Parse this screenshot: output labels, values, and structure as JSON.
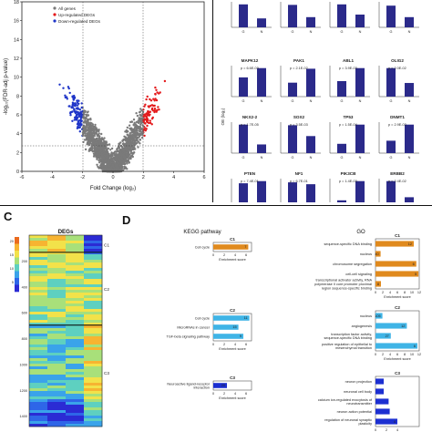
{
  "panel_letters": {
    "c": "C",
    "d": "D"
  },
  "volcano": {
    "legend": [
      "All genes",
      "Up-regulated DEGs",
      "Down-regulated DEGs"
    ],
    "colors": {
      "all": "#7a7a7a",
      "up": "#e41a1c",
      "down": "#1f35c8"
    },
    "xlabel": "Fold Change (log₂)",
    "ylabel": "-log₁₀(FDR-adj p-value)",
    "xticks": [
      "-6",
      "-4",
      "-2",
      "0",
      "2",
      "4",
      "6"
    ],
    "yticks": [
      "0",
      "2",
      "4",
      "6",
      "8",
      "10",
      "12",
      "14",
      "16",
      "18"
    ]
  },
  "bar_grid": {
    "ylabel": "OE (log₂)",
    "bar_color": "#2b2a8a",
    "xlabels": [
      "G",
      "N"
    ],
    "top_row_labels": [
      "G",
      "N"
    ],
    "panels": [
      {
        "gene": "MAPK12",
        "p": "p = 6.6E-03",
        "values": [
          0.62,
          0.92
        ]
      },
      {
        "gene": "PAK1",
        "p": "p = 2.1E-02",
        "values": [
          0.45,
          0.9
        ]
      },
      {
        "gene": "ABL1",
        "p": "p = 3.9E-03",
        "values": [
          0.5,
          0.92
        ]
      },
      {
        "gene": "OLIG2",
        "p": "p = 2.0E-02",
        "values": [
          0.92,
          0.44
        ]
      },
      {
        "gene": "NKX2-2",
        "p": "p = 1.7E-05",
        "values": [
          0.92,
          0.28
        ]
      },
      {
        "gene": "SOX2",
        "p": "p = 3.5E-03",
        "values": [
          0.9,
          0.55
        ]
      },
      {
        "gene": "TP53",
        "p": "p = 1.5E-04",
        "values": [
          0.3,
          0.92
        ]
      },
      {
        "gene": "DNMT1",
        "p": "p = 2.9E-03",
        "values": [
          0.4,
          0.92
        ]
      },
      {
        "gene": "PTEN",
        "p": "p = 7.4E-01",
        "values": [
          0.85,
          0.92
        ]
      },
      {
        "gene": "NF1",
        "p": "p = 6.7E-01",
        "values": [
          0.88,
          0.82
        ]
      },
      {
        "gene": "PIK3CB",
        "p": "p = 1.4E-03",
        "values": [
          0.3,
          0.92
        ]
      },
      {
        "gene": "ERBB2",
        "p": "p = 2.4E-02",
        "values": [
          0.92,
          0.4
        ]
      }
    ],
    "top_values": [
      [
        0.9,
        0.35
      ],
      [
        0.88,
        0.4
      ],
      [
        0.9,
        0.5
      ],
      [
        0.85,
        0.4
      ]
    ]
  },
  "heatmap": {
    "title": "DEGs",
    "clusters": [
      "C1",
      "C2",
      "C3"
    ],
    "yticks": [
      "200",
      "400",
      "600",
      "800",
      "1000",
      "1200",
      "1400"
    ],
    "colorbar_ticks": [
      "5",
      "10",
      "15",
      "20"
    ]
  },
  "kegg": {
    "title": "KEGG pathway",
    "xlabel": "Enrichment score",
    "clusters": [
      {
        "name": "C1",
        "color": "#e08a1e",
        "terms": [
          {
            "label": "Cell cycle",
            "score": 6.4,
            "count": "7"
          }
        ],
        "ticks": [
          "0",
          "2",
          "4",
          "6"
        ]
      },
      {
        "name": "C2",
        "color": "#3fb4e6",
        "terms": [
          {
            "label": "Cell cycle",
            "score": 6.6,
            "count": "11"
          },
          {
            "label": "MicroRNAs in cancer",
            "score": 4.6,
            "count": "15"
          },
          {
            "label": "TGF-beta signaling pathway",
            "score": 5.5,
            "count": "9"
          }
        ],
        "ticks": [
          "0",
          "2",
          "4",
          "6"
        ]
      },
      {
        "name": "C3",
        "color": "#1c2fd1",
        "terms": [
          {
            "label": "Neuroactive ligand-receptor interaction",
            "score": 2.5,
            "count": "20"
          }
        ],
        "ticks": [
          "0",
          "2",
          "4",
          "6"
        ]
      }
    ]
  },
  "go": {
    "title": "GO",
    "xlabel": "Enrichment score",
    "clusters": [
      {
        "name": "C1",
        "color": "#e08a1e",
        "ticks": [
          "0",
          "2",
          "4",
          "6",
          "8",
          "10",
          "12"
        ],
        "max": 12,
        "terms": [
          {
            "label": "sequence-specific DNA binding",
            "score": 10.5,
            "count": "12"
          },
          {
            "label": "nucleus",
            "score": 1.4,
            "count": "40"
          },
          {
            "label": "chromosome segregation",
            "score": 11.2,
            "count": "6"
          },
          {
            "label": "cell-cell signaling",
            "score": 11.8,
            "count": "5"
          },
          {
            "label": "transcriptional activator activity, RNA polymerase II core promoter proximal region sequence-specific binding",
            "score": 1.5,
            "count": "8"
          }
        ]
      },
      {
        "name": "C2",
        "color": "#3fb4e6",
        "ticks": [
          "0",
          "2",
          "4",
          "6",
          "8",
          "10",
          "12"
        ],
        "max": 12,
        "terms": [
          {
            "label": "nucleus",
            "score": 1.9,
            "count": "105"
          },
          {
            "label": "angiogenesis",
            "score": 8.6,
            "count": "12"
          },
          {
            "label": "transcription factor activity, sequence-specific DNA binding",
            "score": 4.2,
            "count": "27"
          },
          {
            "label": "positive regulation of epithelial to mesenchymal transition",
            "score": 11.5,
            "count": "6"
          }
        ]
      },
      {
        "name": "C3",
        "color": "#1c2fd1",
        "ticks": [
          "0",
          "2",
          "4"
        ],
        "max": 8,
        "terms": [
          {
            "label": "neuron projection",
            "score": 1.5,
            "count": ""
          },
          {
            "label": "neuronal cell body",
            "score": 1.5,
            "count": ""
          },
          {
            "label": "calcium ion-regulated exocytosis of neurotransmitter",
            "score": 2.4,
            "count": ""
          },
          {
            "label": "neuron action potential",
            "score": 2.6,
            "count": ""
          },
          {
            "label": "regulation of neuronal synaptic plasticity",
            "score": 4.0,
            "count": "4"
          }
        ]
      }
    ]
  }
}
